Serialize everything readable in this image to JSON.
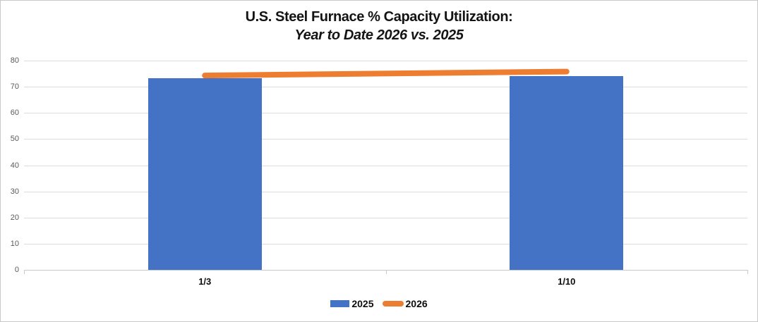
{
  "chart_data": {
    "type": "bar",
    "title": "U.S. Steel Furnace % Capacity Utilization:",
    "subtitle": "Year to Date 2026 vs. 2025",
    "categories": [
      "1/3",
      "1/10"
    ],
    "series": [
      {
        "name": "2025",
        "render": "bar",
        "color": "#4472C4",
        "values": [
          73.4,
          74.2
        ]
      },
      {
        "name": "2026",
        "render": "line",
        "color": "#ED7D31",
        "values": [
          74.3,
          75.8
        ]
      }
    ],
    "xlabel": "",
    "ylabel": "",
    "ylim": [
      0,
      80
    ],
    "ytick_step": 10,
    "ytick_labels": [
      "0",
      "10",
      "20",
      "30",
      "40",
      "50",
      "60",
      "70",
      "80"
    ],
    "grid": true,
    "legend_position": "bottom",
    "colors": {
      "bar_2025": "#4472C4",
      "line_2026": "#ED7D31",
      "gridline": "#DCDCDC",
      "axis_line": "#C9C9C9",
      "ytick_text": "#595959",
      "title_text": "#141414"
    }
  }
}
